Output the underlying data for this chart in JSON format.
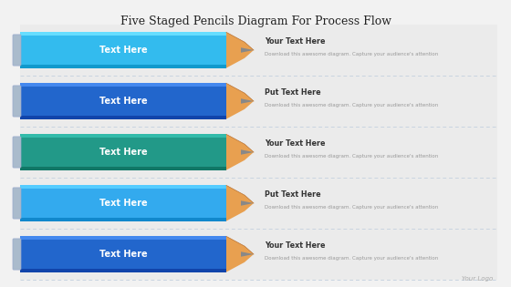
{
  "title": "Five Staged Pencils Diagram For Process Flow",
  "bg_color": "#f2f2f2",
  "pencils": [
    {
      "label": "Text Here",
      "body_color": "#33bbee",
      "body_top": "#66ddff",
      "body_bot": "#1199cc",
      "text_heading": "Your Text Here",
      "text_body": "Download this awesome diagram. Capture your audience's attention"
    },
    {
      "label": "Text Here",
      "body_color": "#2266cc",
      "body_top": "#4488ee",
      "body_bot": "#1144aa",
      "text_heading": "Put Text Here",
      "text_body": "Download this awesome diagram. Capture your audience's attention"
    },
    {
      "label": "Text Here",
      "body_color": "#229988",
      "body_top": "#33bbaa",
      "body_bot": "#117766",
      "text_heading": "Your Text Here",
      "text_body": "Download this awesome diagram. Capture your audience's attention"
    },
    {
      "label": "Text Here",
      "body_color": "#33aaee",
      "body_top": "#55ccff",
      "body_bot": "#1188cc",
      "text_heading": "Put Text Here",
      "text_body": "Download this awesome diagram. Capture your audience's attention"
    },
    {
      "label": "Text Here",
      "body_color": "#2266cc",
      "body_top": "#4488ee",
      "body_bot": "#1144aa",
      "text_heading": "Your Text Here",
      "text_body": "Download this awesome diagram. Capture your audience's attention"
    }
  ],
  "logo_text": "Your Logo",
  "panel_color": "#ebebeb",
  "panel_line_color": "#c8d4e0",
  "wood_color": "#e8a050",
  "graphite_color": "#888888",
  "eraser_color": "#aabbcc",
  "label_color": "#ffffff",
  "heading_color": "#333333",
  "body_text_color": "#999999"
}
